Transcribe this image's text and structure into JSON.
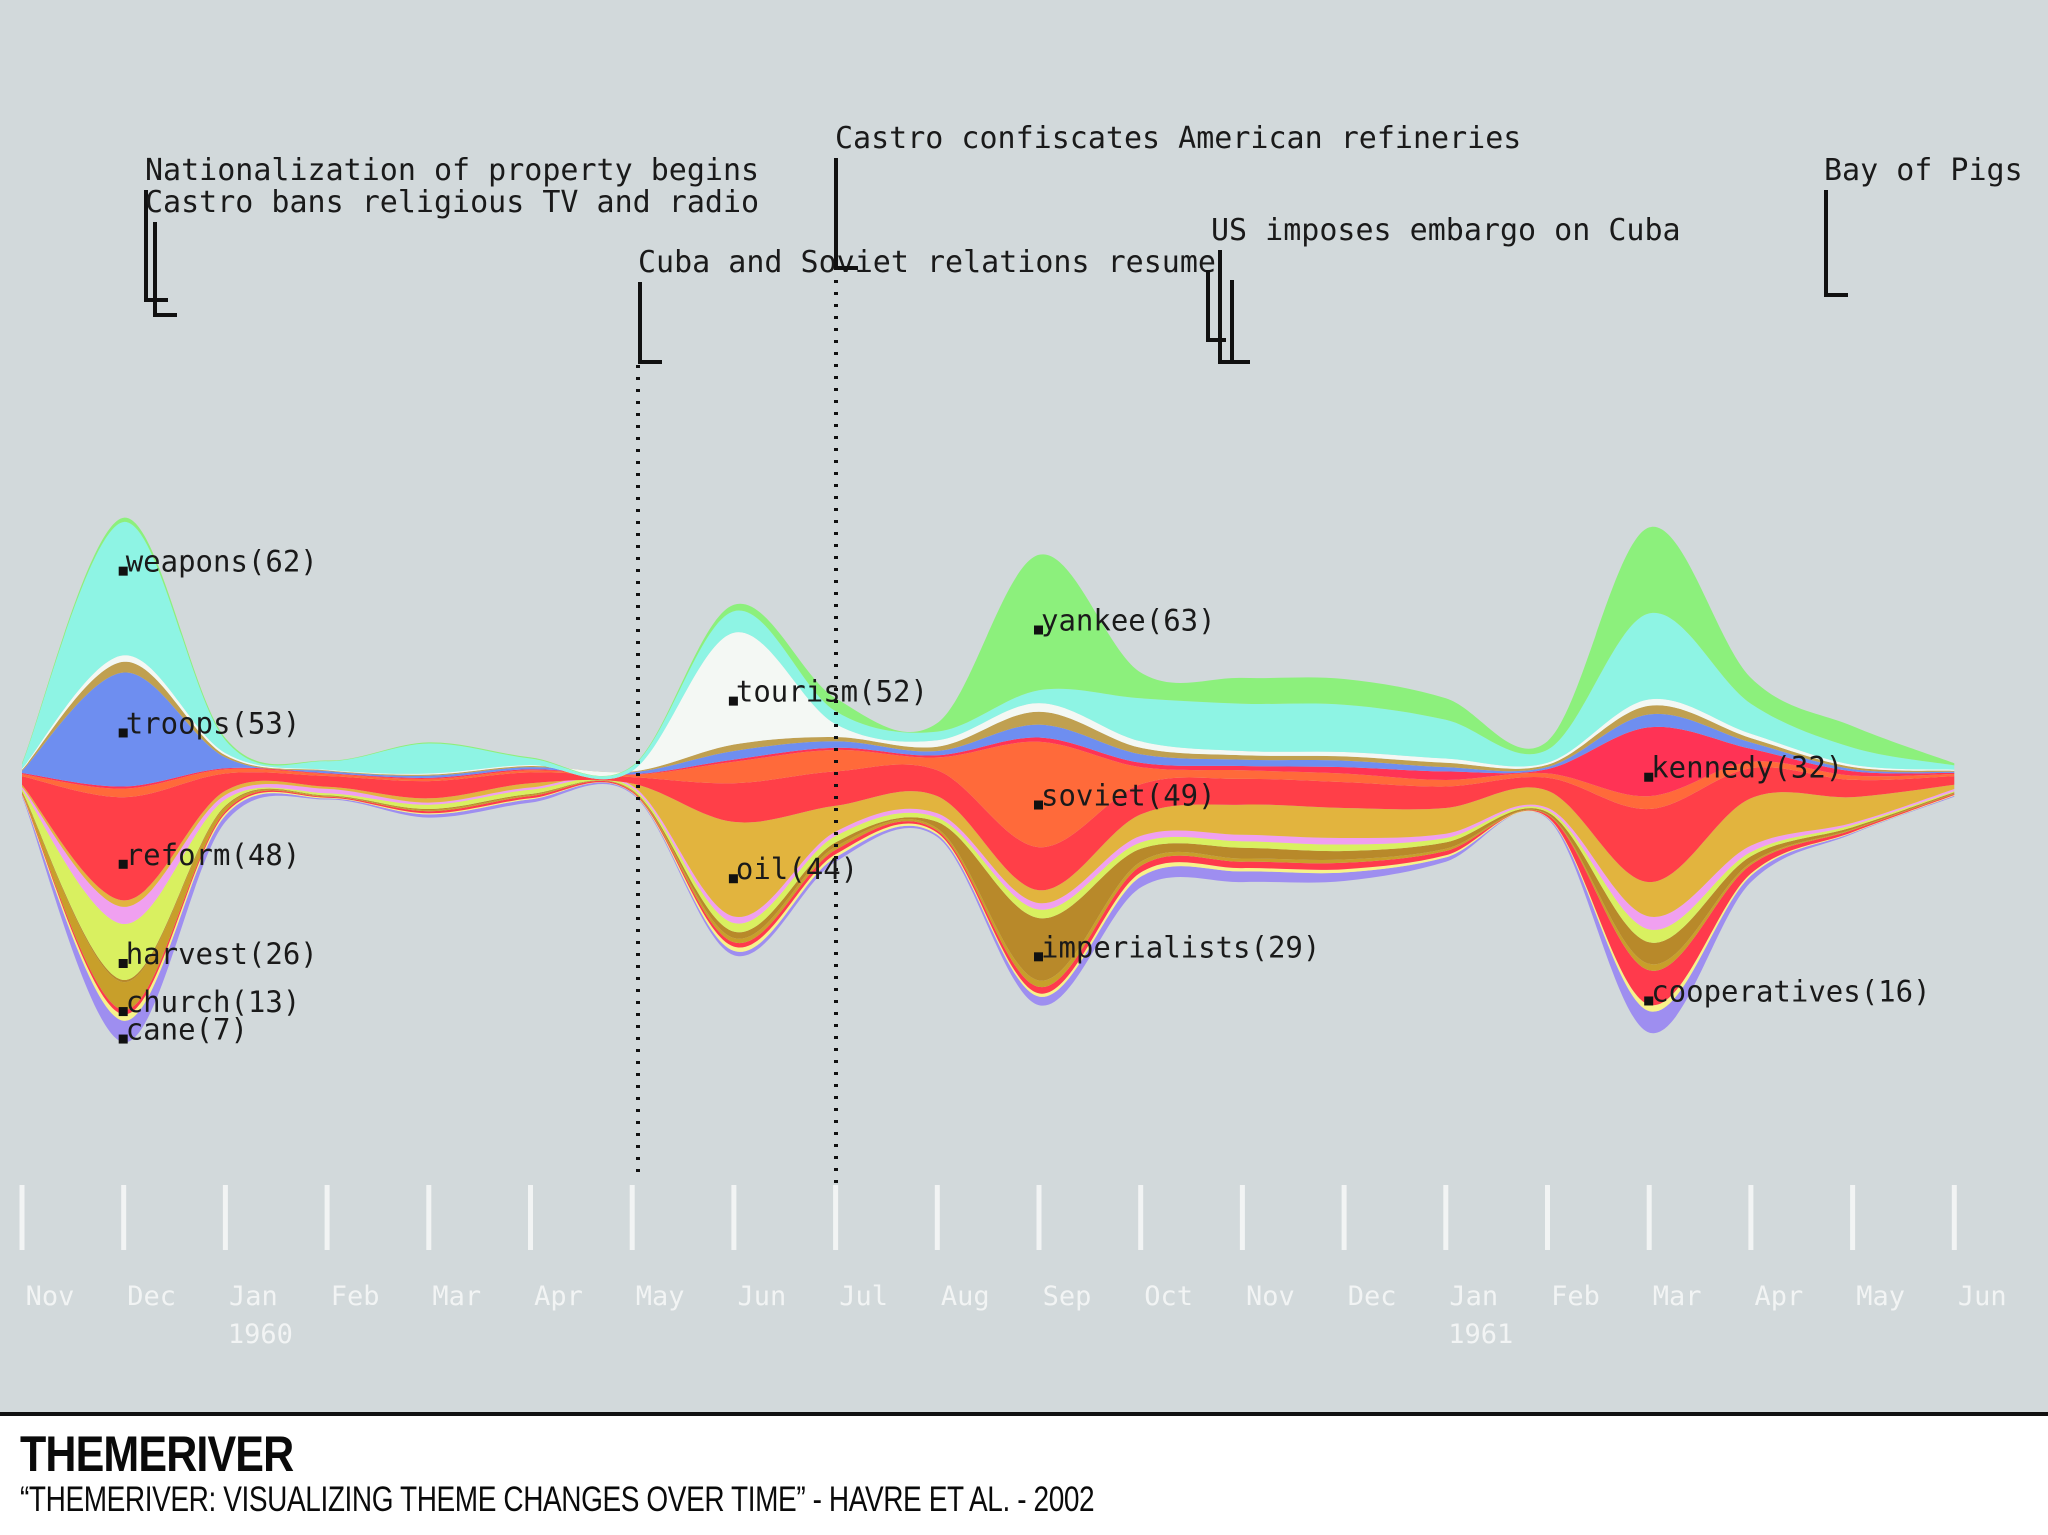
{
  "chart_data": {
    "type": "area",
    "subtype": "streamgraph",
    "x_months": [
      "Nov",
      "Dec",
      "Jan",
      "Feb",
      "Mar",
      "Apr",
      "May",
      "Jun",
      "Jul",
      "Aug",
      "Sep",
      "Oct",
      "Nov",
      "Dec",
      "Jan",
      "Feb",
      "Mar",
      "Apr",
      "May",
      "Jun"
    ],
    "year_labels": [
      {
        "text": "1960",
        "month_index": 2
      },
      {
        "text": "1961",
        "month_index": 14
      }
    ],
    "series": [
      {
        "label": "cane(7)",
        "color": "#9e8ef0",
        "values": [
          0.5,
          10,
          3,
          0.5,
          1.5,
          1.5,
          0.5,
          2,
          2,
          1,
          4,
          5,
          5,
          4,
          2,
          0.5,
          10,
          3,
          0.5,
          0.5
        ]
      },
      {
        "label": "",
        "color": "#f7f38a",
        "values": [
          0.5,
          3,
          1,
          0.3,
          0.5,
          0.5,
          0.3,
          2,
          1.5,
          1,
          1.5,
          2,
          1.5,
          1.5,
          1,
          0.3,
          3,
          1,
          0.3,
          0.3
        ]
      },
      {
        "label": "cooperatives(16)",
        "color": "#ff3a4c",
        "values": [
          0.5,
          2,
          1,
          0.5,
          1,
          1,
          0.5,
          2,
          2,
          1,
          3,
          3,
          3,
          3,
          2,
          1,
          16,
          4,
          1,
          0.5
        ]
      },
      {
        "label": "church(13)",
        "color": "#c89f2a",
        "values": [
          0.5,
          13,
          2,
          0.3,
          0.5,
          0.5,
          0.3,
          2,
          1.5,
          1,
          3,
          2,
          1.5,
          1.5,
          1,
          0.3,
          3,
          1,
          0.3,
          0.3
        ]
      },
      {
        "label": "imperialists(29)",
        "color": "#b8892a",
        "values": [
          0.5,
          1,
          0.5,
          0.3,
          0.5,
          0.5,
          0.3,
          3,
          2,
          3,
          29,
          6,
          5,
          4,
          3,
          1,
          10,
          3,
          1,
          0.5
        ]
      },
      {
        "label": "harvest(26)",
        "color": "#d9f060",
        "values": [
          1,
          26,
          3,
          1,
          2,
          2,
          1,
          4,
          3,
          2,
          4,
          3,
          3,
          3,
          2,
          1,
          6,
          2,
          1,
          0.5
        ]
      },
      {
        "label": "",
        "color": "#f0a0f0",
        "values": [
          1,
          8,
          2,
          2,
          1,
          1,
          1,
          3,
          2,
          2,
          3,
          3,
          3,
          3,
          2,
          1,
          6,
          3,
          1,
          1
        ]
      },
      {
        "label": "oil(44)",
        "color": "#e2b43e",
        "values": [
          1,
          3,
          2,
          1,
          2,
          2,
          1,
          44,
          12,
          8,
          6,
          10,
          14,
          14,
          12,
          8,
          16,
          22,
          12,
          2
        ]
      },
      {
        "label": "reform(48)",
        "color": "#ff3f48",
        "values": [
          4,
          48,
          8,
          5,
          8,
          5,
          3,
          18,
          16,
          12,
          20,
          14,
          12,
          12,
          10,
          6,
          34,
          14,
          8,
          4
        ]
      },
      {
        "label": "soviet(49)",
        "color": "#ff6a3a",
        "values": [
          1,
          4,
          2,
          1,
          1,
          1,
          1,
          10,
          10,
          6,
          49,
          8,
          4,
          4,
          3,
          2,
          6,
          3,
          2,
          1
        ]
      },
      {
        "label": "kennedy(32)",
        "color": "#ff3355",
        "values": [
          0.5,
          1,
          0.5,
          0.3,
          0.5,
          0.5,
          0.3,
          1,
          1,
          1,
          2,
          2,
          2,
          3,
          4,
          2,
          32,
          6,
          2,
          0.5
        ]
      },
      {
        "label": "troops(53)",
        "color": "#6e8ef0",
        "values": [
          1,
          53,
          5,
          1,
          1,
          1,
          1,
          4,
          3,
          2,
          6,
          4,
          3,
          3,
          2,
          1,
          6,
          3,
          1,
          0.5
        ]
      },
      {
        "label": "",
        "color": "#c0a050",
        "values": [
          0.5,
          5,
          1,
          0.3,
          0.5,
          0.5,
          0.3,
          3,
          2,
          2,
          6,
          3,
          2,
          2,
          2,
          1,
          4,
          2,
          1,
          0.5
        ]
      },
      {
        "label": "tourism(52)",
        "color": "#f4f8f4",
        "values": [
          0.5,
          3,
          1,
          0.3,
          0.5,
          0.5,
          0.3,
          52,
          6,
          3,
          4,
          3,
          2,
          2,
          2,
          1,
          3,
          2,
          1,
          0.5
        ]
      },
      {
        "label": "weapons(62)",
        "color": "#8ef4e4",
        "values": [
          2,
          62,
          6,
          4,
          14,
          3,
          2,
          10,
          6,
          4,
          6,
          20,
          22,
          22,
          18,
          6,
          40,
          14,
          8,
          2
        ]
      },
      {
        "label": "yankee(63)",
        "color": "#8cf07c",
        "values": [
          0.5,
          2,
          1,
          0.3,
          0.5,
          0.5,
          0.3,
          3,
          6,
          4,
          63,
          12,
          12,
          12,
          10,
          4,
          40,
          12,
          10,
          1
        ]
      }
    ],
    "events": [
      {
        "text": "Nationalization of property begins",
        "month": 1.1
      },
      {
        "text": "Castro bans religious TV and radio",
        "month": 1.1
      },
      {
        "text": "Cuba and Soviet relations resume",
        "month": 6.0
      },
      {
        "text": "Castro confiscates American refineries",
        "month": 7.9
      },
      {
        "text": "US imposes embargo on Cuba",
        "month": 11.9
      },
      {
        "text": "Bay of Pigs",
        "month": 17.8
      }
    ],
    "title": "",
    "xlabel": "",
    "ylabel": ""
  },
  "caption": {
    "title": "THEMERIVER",
    "subtitle": "“ThemeRiver: Visualizing Theme Changes Over Time” - Havre et al. - 2002"
  },
  "colors": {
    "background": "#d2d9db",
    "tick": "#f2f4f4",
    "ink": "#1a1a1a"
  }
}
